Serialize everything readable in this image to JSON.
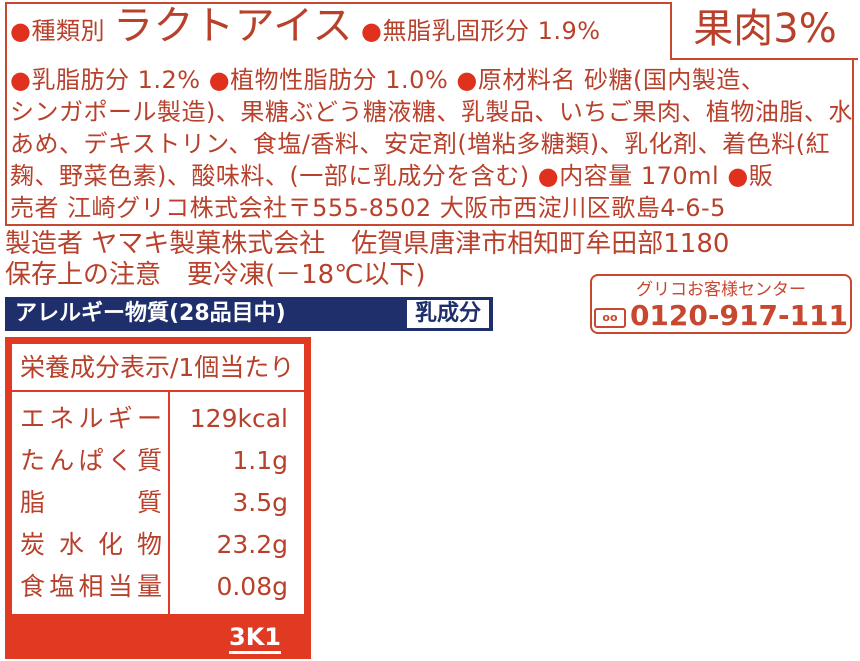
{
  "top": {
    "fruit": "果肉3%",
    "bullet": "●",
    "type_label": "種類別",
    "type_value": "ラクトアイス",
    "msnf": "無脂乳固形分 1.9%",
    "milkfat": "乳脂肪分 1.2%",
    "vegfat": "植物性脂肪分 1.0%",
    "ingredients_label": "原材料名",
    "ingredients_1": "砂糖(国内製造、",
    "line2": "シンガポール製造)、果糖ぶどう糖液糖、乳製品、いちご果肉、植物油脂、水",
    "line3": "あめ、デキストリン、食塩/香料、安定剤(増粘多糖類)、乳化剤、着色料(紅",
    "line4": "麹、野菜色素)、酸味料、(一部に乳成分を含む)",
    "volume": "内容量 170ml",
    "seller_a": "販",
    "line5": "売者 江崎グリコ株式会社〒555-8502 大阪市西淀川区歌島4-6-5"
  },
  "manufacturer": "製造者 ヤマキ製菓株式会社　佐賀県唐津市相知町牟田部1180",
  "storage": "保存上の注意　要冷凍(－18℃以下)",
  "allergy": {
    "label": "アレルギー物質(28品目中)",
    "value": "乳成分"
  },
  "call_center": {
    "title": "グリコお客様センター",
    "free_dial": "0120-917-111",
    "icon": "free-dial-icon"
  },
  "nutrition": {
    "title": "栄養成分表示/1個当たり",
    "rows": [
      {
        "label": "エネルギー",
        "value": "129kcal"
      },
      {
        "label": "たんぱく質",
        "value": "1.1g"
      },
      {
        "label": "脂質",
        "value": "3.5g"
      },
      {
        "label": "炭水化物",
        "value": "23.2g"
      },
      {
        "label": "食塩相当量",
        "value": "0.08g"
      }
    ],
    "code": "3K1"
  },
  "colors": {
    "text": "#b8412c",
    "bullet": "#e0301e",
    "navy": "#1e2f6b",
    "table_red": "#e03a22"
  }
}
